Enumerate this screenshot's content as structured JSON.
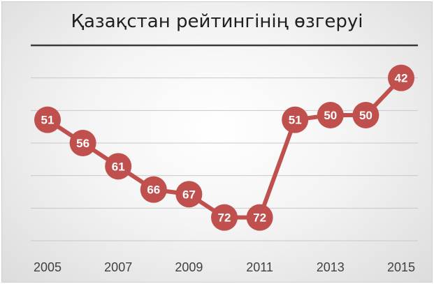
{
  "chart_data": {
    "type": "line",
    "title": "Қазақстан рейтингінің өзгеруі",
    "x": [
      2005,
      2006,
      2007,
      2008,
      2009,
      2010,
      2011,
      2012,
      2013,
      2014,
      2015
    ],
    "series": [
      {
        "values": [
          51,
          56,
          61,
          66,
          67,
          72,
          72,
          51,
          50,
          50,
          42
        ]
      }
    ],
    "x_tick_labels": [
      "2005",
      "2007",
      "2009",
      "2011",
      "2013",
      "2015"
    ],
    "ylim": [
      77,
      35
    ],
    "y_axis_reversed": true,
    "grid": true,
    "legend": "none",
    "line_color": "#c0504d",
    "marker_color": "#c0504d",
    "label_color": "#ffffff"
  }
}
